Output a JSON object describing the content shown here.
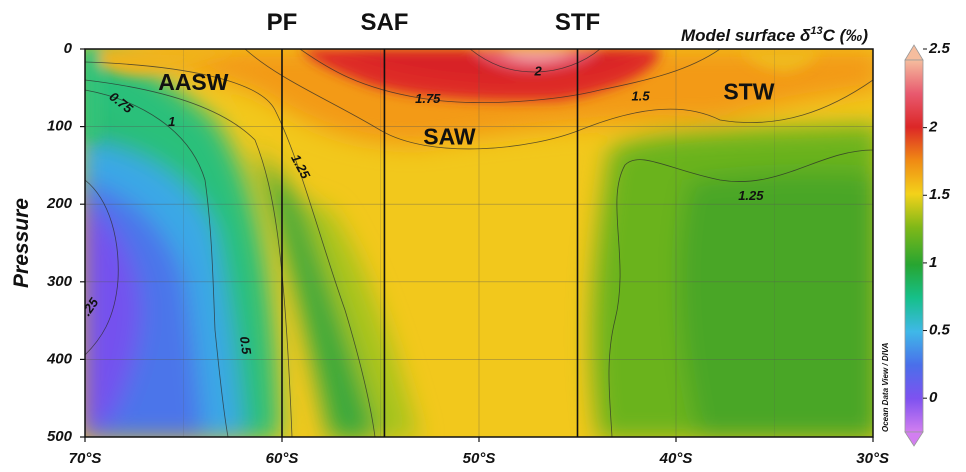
{
  "chart_data": {
    "type": "heatmap",
    "title": "Model surface δ13C (‰)",
    "title_main": "Model surface δ",
    "title_sup": "13",
    "title_tail": "C (‰)",
    "ylabel": "Pressure",
    "x_ticks": [
      "70°S",
      "60°S",
      "50°S",
      "40°S",
      "30°S"
    ],
    "x_tick_values": [
      -70,
      -60,
      -50,
      -40,
      -30
    ],
    "y_ticks": [
      "0",
      "100",
      "200",
      "300",
      "400",
      "500"
    ],
    "y_tick_values": [
      0,
      100,
      200,
      300,
      400,
      500
    ],
    "xlim": [
      -70,
      -30
    ],
    "ylim": [
      0,
      500
    ],
    "grid": true,
    "fronts": [
      {
        "label": "PF",
        "lat": -60
      },
      {
        "label": "SAF",
        "lat": -54.8
      },
      {
        "label": "STF",
        "lat": -45
      }
    ],
    "water_masses": [
      {
        "label": "AASW",
        "lat": -64.5,
        "pressure": 45
      },
      {
        "label": "SAW",
        "lat": -51.5,
        "pressure": 115
      },
      {
        "label": "STW",
        "lat": -36.3,
        "pressure": 57
      }
    ],
    "contour_labels": [
      {
        "text": "0.75",
        "lat": -68.2,
        "pressure": 70,
        "rotate": 38
      },
      {
        "text": "1",
        "lat": -65.6,
        "pressure": 95,
        "rotate": 0
      },
      {
        "text": "1.25",
        "lat": -59.1,
        "pressure": 152,
        "rotate": 62
      },
      {
        "text": "1.75",
        "lat": -52.6,
        "pressure": 65,
        "rotate": 0
      },
      {
        "text": "2",
        "lat": -47.0,
        "pressure": 30,
        "rotate": 0
      },
      {
        "text": "1.5",
        "lat": -41.8,
        "pressure": 62,
        "rotate": 0
      },
      {
        "text": "1.25",
        "lat": -36.2,
        "pressure": 190,
        "rotate": 0
      },
      {
        "text": ".25",
        "lat": -69.7,
        "pressure": 333,
        "rotate": -55
      },
      {
        "text": "0.5",
        "lat": -61.9,
        "pressure": 382,
        "rotate": 82
      }
    ],
    "colorbar": {
      "ticks": [
        "2.5",
        "2",
        "1.5",
        "1",
        "0.5",
        "0"
      ],
      "tick_values": [
        2.5,
        2,
        1.5,
        1,
        0.5,
        0
      ],
      "range": [
        -0.25,
        2.5
      ],
      "colors": [
        "#d27ef0",
        "#7e52f0",
        "#4a6fea",
        "#3fb8e8",
        "#16c08a",
        "#27a531",
        "#7fb818",
        "#f3d21a",
        "#f08a14",
        "#dc2727",
        "#e85a6f",
        "#f5bd9e"
      ]
    },
    "credit": "Ocean Data View / DIVA"
  }
}
